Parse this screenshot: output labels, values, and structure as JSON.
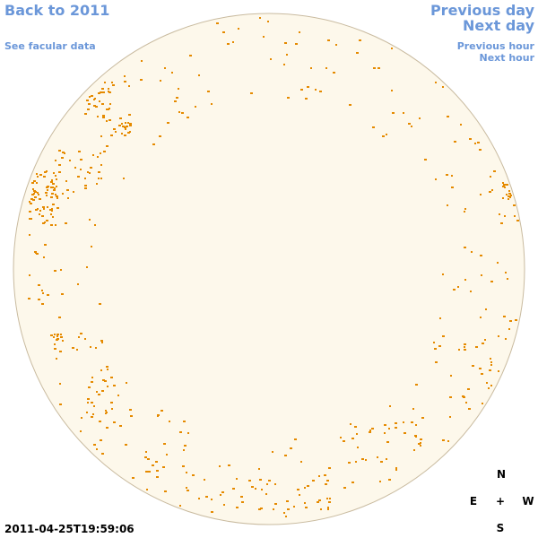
{
  "links": {
    "back": "Back to 2011",
    "facular": "See facular data",
    "previous_day": "Previous day",
    "next_day": "Next day",
    "previous_hour": "Previous hour",
    "next_hour": "Next hour"
  },
  "timestamp": "2011-04-25T19:59:06",
  "compass": {
    "north": "N",
    "east": "E",
    "center": "+",
    "west": "W",
    "south": "S"
  }
}
